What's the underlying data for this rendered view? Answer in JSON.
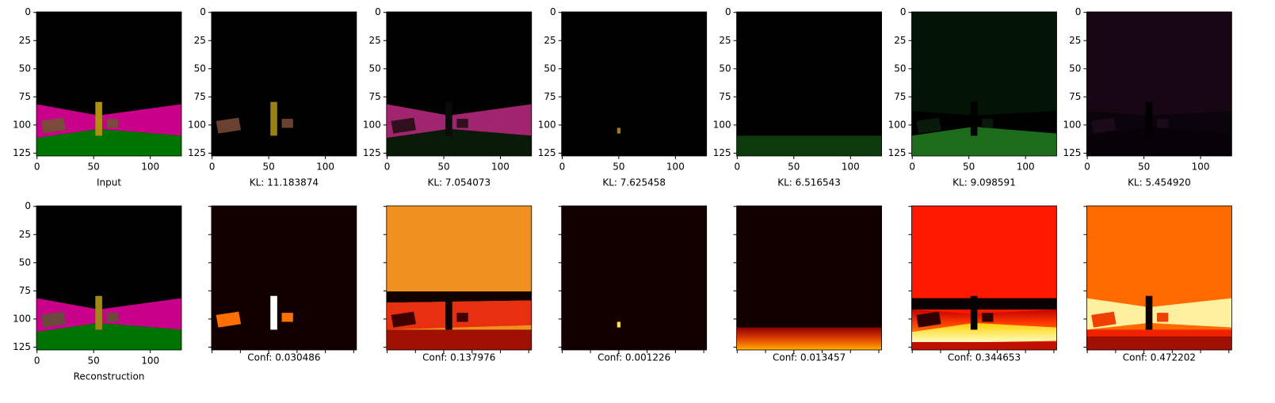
{
  "axis": {
    "xticks": [
      0,
      50,
      100
    ],
    "yticks": [
      0,
      25,
      50,
      75,
      100,
      125
    ]
  },
  "rows": [
    {
      "panels": [
        {
          "caption": "Input",
          "tick_labels": true
        },
        {
          "caption": "KL: 11.183874",
          "tick_labels": true
        },
        {
          "caption": "KL: 7.054073",
          "tick_labels": true
        },
        {
          "caption": "KL: 7.625458",
          "tick_labels": true
        },
        {
          "caption": "KL: 6.516543",
          "tick_labels": true
        },
        {
          "caption": "KL: 9.098591",
          "tick_labels": true
        },
        {
          "caption": "KL: 5.454920",
          "tick_labels": true
        }
      ]
    },
    {
      "panels": [
        {
          "caption": "Reconstruction",
          "tick_labels": true
        },
        {
          "caption": "Conf: 0.030486",
          "tick_labels": false
        },
        {
          "caption": "Conf: 0.137976",
          "tick_labels": false
        },
        {
          "caption": "Conf: 0.001226",
          "tick_labels": false
        },
        {
          "caption": "Conf: 0.013457",
          "tick_labels": false
        },
        {
          "caption": "Conf: 0.344653",
          "tick_labels": false
        },
        {
          "caption": "Conf: 0.472202",
          "tick_labels": false
        }
      ]
    }
  ]
}
